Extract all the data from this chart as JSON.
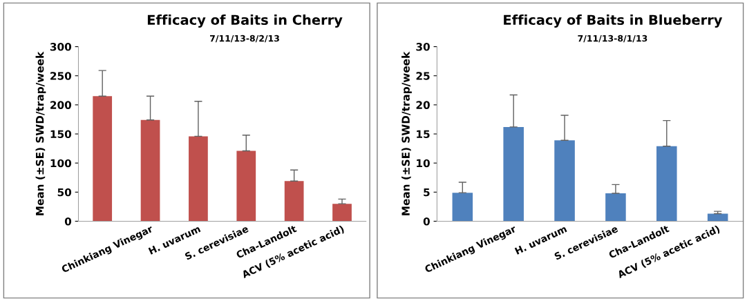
{
  "chart_data": [
    {
      "type": "bar",
      "title": "Efficacy of Baits in Cherry",
      "subtitle": "7/11/13-8/2/13",
      "ylabel": "Mean (±SE) SWD/trap/week",
      "categories": [
        null,
        "Chinkiang Vinegar",
        "H. uvarum",
        "S. cerevisiae",
        "Cha-Landolt",
        "ACV (5% acetic acid)"
      ],
      "values": [
        215,
        174,
        146,
        121,
        69,
        30
      ],
      "color": "#c0504d",
      "errors": [
        [
          215,
          259
        ],
        [
          174,
          215
        ],
        [
          146,
          206
        ],
        [
          121,
          148
        ],
        [
          69,
          88
        ],
        [
          30,
          38
        ]
      ],
      "ylim": [
        0,
        300
      ],
      "yticks": [
        0,
        50,
        100,
        150,
        200,
        250,
        300
      ]
    },
    {
      "type": "bar",
      "title": "Efficacy of Baits in Blueberry",
      "subtitle": "7/11/13-8/1/13",
      "ylabel": "Mean (±SE) SWD/trap/week",
      "categories": [
        null,
        "Chinkiang Vinegar",
        "H. uvarum",
        "S. cerevisiae",
        "Cha-Landolt",
        "ACV (5% acetic acid)"
      ],
      "values": [
        4.9,
        16.2,
        13.9,
        4.8,
        12.9,
        1.3
      ],
      "color": "#4f81bd",
      "errors": [
        [
          4.9,
          6.7
        ],
        [
          16.2,
          21.7
        ],
        [
          13.9,
          18.2
        ],
        [
          4.8,
          6.3
        ],
        [
          12.9,
          17.3
        ],
        [
          1.3,
          1.7
        ]
      ],
      "ylim": [
        0,
        30
      ],
      "yticks": [
        0,
        5,
        10,
        15,
        20,
        25,
        30
      ]
    }
  ]
}
